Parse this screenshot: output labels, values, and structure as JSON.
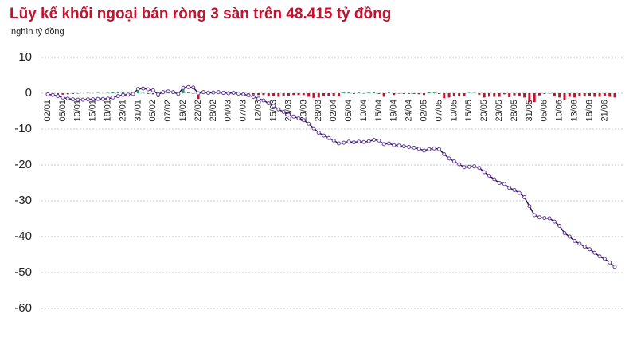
{
  "chart_data": {
    "type": "bar-line",
    "title": "Lũy kế khối ngoại bán ròng 3 sàn trên 48.415 tỷ đồng",
    "subtitle": "nghìn tỷ đồng",
    "categories": [
      "02/01",
      null,
      null,
      "05/01",
      null,
      null,
      "10/01",
      null,
      null,
      "15/01",
      null,
      null,
      "18/01",
      null,
      null,
      "23/01",
      null,
      null,
      "31/01",
      null,
      null,
      "05/02",
      null,
      null,
      "07/02",
      null,
      null,
      "19/02",
      null,
      null,
      "22/02",
      null,
      null,
      "28/02",
      null,
      null,
      "04/03",
      null,
      null,
      "07/03",
      null,
      null,
      "12/03",
      null,
      null,
      "15/03",
      null,
      null,
      "20/03",
      null,
      null,
      "23/03",
      null,
      null,
      "28/03",
      null,
      null,
      "02/04",
      null,
      null,
      "05/04",
      null,
      null,
      "10/04",
      null,
      null,
      "15/04",
      null,
      null,
      "19/04",
      null,
      null,
      "24/04",
      null,
      null,
      "02/05",
      null,
      null,
      "07/05",
      null,
      null,
      "10/05",
      null,
      null,
      "15/05",
      null,
      null,
      "20/05",
      null,
      null,
      "23/05",
      null,
      null,
      "28/05",
      null,
      null,
      "31/05",
      null,
      null,
      "05/06",
      null,
      null,
      "10/06",
      null,
      null,
      "13/06",
      null,
      null,
      "18/06",
      null,
      null,
      "21/06",
      null,
      null
    ],
    "series": [
      {
        "type": "bar",
        "color": "#2a9d6a",
        "negative_color": "#c8102e",
        "values": [
          -0.3,
          -0.2,
          -0.3,
          -0.4,
          -0.3,
          -0.2,
          -0.1,
          0,
          0.1,
          0,
          0.1,
          0,
          0.1,
          0.3,
          0.4,
          0.3,
          0.1,
          0.2,
          1.4,
          0.1,
          -0.2,
          -0.3,
          -1.1,
          0.6,
          0.2,
          -0.2,
          -0.5,
          1.7,
          0.2,
          -0.1,
          -1.6,
          0.3,
          -0.2,
          0.1,
          0.1,
          -0.2,
          -0.1,
          0.1,
          -0.2,
          -0.2,
          -0.3,
          -0.4,
          -0.5,
          -0.5,
          -0.8,
          -0.7,
          -1.0,
          -0.7,
          -0.8,
          -0.5,
          -0.5,
          -0.5,
          -1.0,
          -1.3,
          -1.2,
          -0.8,
          -0.7,
          -0.7,
          -0.8,
          0.2,
          0.3,
          -0.2,
          0.2,
          -0.1,
          0.2,
          0.4,
          -0.2,
          -1.0,
          0.2,
          -0.5,
          -0.1,
          -0.2,
          -0.2,
          -0.2,
          -0.3,
          -0.5,
          0.4,
          0.2,
          -0.2,
          -1.4,
          -1.2,
          -0.8,
          -0.8,
          -0.8,
          0.1,
          0.1,
          -0.4,
          -1.2,
          -1.0,
          -1.0,
          -1.0,
          -0.3,
          -1.1,
          -0.6,
          -0.8,
          -1.2,
          -2.5,
          -2.5,
          -0.6,
          -0.2,
          -0.1,
          -0.9,
          -1.2,
          -2.0,
          -1.0,
          -1.2,
          -0.8,
          -0.8,
          -0.7,
          -1.0,
          -1.0,
          -0.7,
          -1.0,
          -1.2
        ]
      },
      {
        "type": "line",
        "color": "#1c1c4a",
        "marker_color": "#6b3fa0",
        "values": [
          -0.3,
          -0.5,
          -0.8,
          -1.2,
          -1.5,
          -1.7,
          -1.8,
          -1.8,
          -1.7,
          -1.7,
          -1.6,
          -1.6,
          -1.5,
          -1.2,
          -0.8,
          -0.5,
          -0.4,
          -0.2,
          1.2,
          1.3,
          1.1,
          0.8,
          -0.3,
          0.3,
          0.5,
          0.3,
          -0.2,
          1.5,
          1.7,
          1.6,
          0.0,
          0.3,
          0.1,
          0.2,
          0.3,
          0.1,
          0.0,
          0.1,
          -0.1,
          -0.3,
          -0.6,
          -1.0,
          -1.5,
          -2.0,
          -2.8,
          -3.5,
          -4.5,
          -5.2,
          -6.0,
          -6.5,
          -7.0,
          -7.5,
          -8.5,
          -9.8,
          -11.0,
          -11.8,
          -12.5,
          -13.2,
          -14.0,
          -13.8,
          -13.5,
          -13.7,
          -13.5,
          -13.6,
          -13.4,
          -13.0,
          -13.2,
          -14.2,
          -14.0,
          -14.5,
          -14.6,
          -14.8,
          -15.0,
          -15.2,
          -15.5,
          -16.0,
          -15.6,
          -15.4,
          -15.6,
          -17.0,
          -18.2,
          -19.0,
          -19.8,
          -20.6,
          -20.5,
          -20.4,
          -20.8,
          -22.0,
          -23.0,
          -24.0,
          -25.0,
          -25.3,
          -26.4,
          -27.0,
          -27.8,
          -29.0,
          -31.5,
          -34.0,
          -34.6,
          -34.8,
          -34.9,
          -35.8,
          -37.0,
          -39.0,
          -40.0,
          -41.2,
          -42.0,
          -42.8,
          -43.5,
          -44.5,
          -45.5,
          -46.2,
          -47.2,
          -48.4
        ]
      }
    ],
    "ylim": [
      -60,
      10
    ],
    "yticks": [
      10,
      0,
      -10,
      -20,
      -30,
      -40,
      -50,
      -60
    ],
    "grid": true
  }
}
